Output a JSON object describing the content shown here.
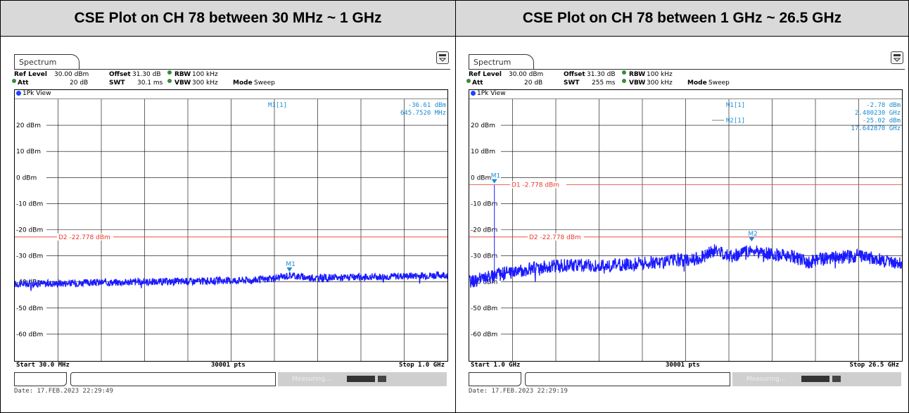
{
  "headers": {
    "left": "CSE Plot on CH 78 between 30 MHz ~ 1 GHz",
    "right": "CSE Plot on CH 78 between 1 GHz ~ 26.5 GHz"
  },
  "panels": [
    {
      "tab": "Spectrum",
      "ref_label": "Ref Level",
      "ref_value": "30.00 dBm",
      "offset_label": "Offset",
      "offset_value": "31.30 dB",
      "rbw_label": "RBW",
      "rbw_value": "100 kHz",
      "att_label": "Att",
      "att_value": "20 dB",
      "swt_label": "SWT",
      "swt_value": "30.1 ms",
      "vbw_label": "VBW",
      "vbw_value": "300 kHz",
      "mode_label": "Mode",
      "mode_value": "Sweep",
      "view": "1Pk View",
      "start": "Start 30.0 MHz",
      "points": "30001 pts",
      "stop": "Stop 1.0 GHz",
      "measuring": "Measuring...",
      "date": "Date: 17.FEB.2023  22:29:49"
    },
    {
      "tab": "Spectrum",
      "ref_label": "Ref Level",
      "ref_value": "30.00 dBm",
      "offset_label": "Offset",
      "offset_value": "31.30 dB",
      "rbw_label": "RBW",
      "rbw_value": "100 kHz",
      "att_label": "Att",
      "att_value": "20 dB",
      "swt_label": "SWT",
      "swt_value": "255 ms",
      "vbw_label": "VBW",
      "vbw_value": "300 kHz",
      "mode_label": "Mode",
      "mode_value": "Sweep",
      "view": "1Pk View",
      "start": "Start 1.0 GHz",
      "points": "30001 pts",
      "stop": "Stop 26.5 GHz",
      "measuring": "Measuring...",
      "date": "Date: 17.FEB.2023  22:29:19"
    }
  ],
  "colors": {
    "trace": "#1a1aff",
    "marker": "#1a8ad4",
    "limit": "#e8392e",
    "grid": "#000000"
  },
  "chart_data": [
    {
      "type": "line",
      "xlim_mhz": [
        30,
        1000
      ],
      "ylim": [
        -70,
        30
      ],
      "ytick_values": [
        20,
        10,
        0,
        -10,
        -20,
        -30,
        -40,
        -50,
        -60
      ],
      "ytick_labels": [
        "20 dBm",
        "10 dBm",
        "0 dBm",
        "-10 dBm",
        "-20 dBm",
        "-30 dBm",
        "-40 dBm",
        "-50 dBm",
        "-60 dBm"
      ],
      "grid": true,
      "limit_lines": [
        {
          "label": "D2  -22.778 dBm",
          "y": -22.778
        }
      ],
      "markers": [
        {
          "name": "M1",
          "x_mhz": 645.752,
          "y": -36.61
        }
      ],
      "marker_readout": [
        {
          "label": "M1[1]",
          "value": "-36.61 dBm",
          "freq": "645.7520 MHz"
        }
      ],
      "series": [
        {
          "x_mhz": [
            30,
            100,
            200,
            300,
            400,
            500,
            600,
            645.752,
            700,
            800,
            900,
            1000
          ],
          "y": [
            -40.8,
            -40.6,
            -40.3,
            -40.0,
            -39.8,
            -39.5,
            -39.0,
            -37.5,
            -38.5,
            -38.2,
            -37.8,
            -37.3
          ]
        }
      ]
    },
    {
      "type": "line",
      "xlim_ghz": [
        1.0,
        26.5
      ],
      "ylim": [
        -70,
        30
      ],
      "ytick_values": [
        20,
        10,
        0,
        -10,
        -20,
        -30,
        -40,
        -50,
        -60
      ],
      "ytick_labels": [
        "20 dBm",
        "10 dBm",
        "0 dBm",
        "-10 dBm",
        "-20 dBm",
        "-30 dBm",
        "-40 dBm",
        "-50 dBm",
        "-60 dBm"
      ],
      "grid": true,
      "limit_lines": [
        {
          "label": "D1  -2.778 dBm",
          "y": -2.778
        },
        {
          "label": "D2  -22.778 dBm",
          "y": -22.778
        }
      ],
      "markers": [
        {
          "name": "M1",
          "x_ghz": 2.48023,
          "y": -2.78
        },
        {
          "name": "M2",
          "x_ghz": 17.64287,
          "y": -25.02
        }
      ],
      "marker_readout": [
        {
          "label": "M1[1]",
          "value": "-2.78 dBm",
          "freq": "2.480230 GHz"
        },
        {
          "label": "M2[1]",
          "value": "-25.02 dBm",
          "freq": "17.642870 GHz"
        }
      ],
      "series": [
        {
          "x_ghz": [
            1.0,
            2.0,
            3.0,
            5.0,
            7.0,
            9.0,
            11.0,
            13.0,
            14.5,
            15.5,
            16.5,
            17.6,
            19.0,
            20.0,
            21.0,
            22.0,
            24.0,
            26.5
          ],
          "y": [
            -40.0,
            -38.5,
            -36.8,
            -34.5,
            -33.5,
            -34.0,
            -33.0,
            -32.0,
            -31.0,
            -28.0,
            -30.0,
            -28.0,
            -29.5,
            -30.0,
            -32.5,
            -31.0,
            -30.0,
            -33.0
          ]
        }
      ]
    }
  ]
}
